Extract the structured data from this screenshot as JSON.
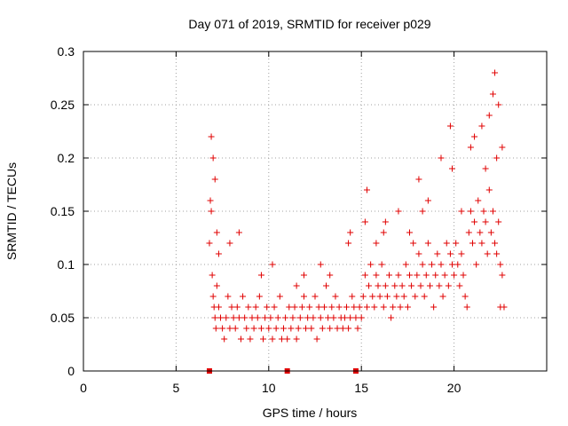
{
  "colors": {
    "series": "#e00000",
    "grid": "#a0a0a0",
    "axis": "#000000"
  },
  "chart_data": {
    "type": "scatter",
    "title": "Day 071 of 2019, SRMTID for receiver p029",
    "xlabel": "GPS time / hours",
    "ylabel": "SRMTID / TECUs",
    "xlim": [
      0,
      25
    ],
    "ylim": [
      0,
      0.3
    ],
    "xticks": [
      0,
      5,
      10,
      15,
      20
    ],
    "xtick_labels": [
      "0",
      "5",
      "10",
      "15",
      "20"
    ],
    "yticks": [
      0,
      0.05,
      0.1,
      0.15,
      0.2,
      0.25,
      0.3
    ],
    "ytick_labels": [
      "0",
      "0.05",
      "0.1",
      "0.15",
      "0.2",
      "0.25",
      "0.3"
    ],
    "grid": true,
    "marker": "+",
    "series": [
      {
        "name": "SRMTID",
        "x": [
          6.8,
          6.85,
          6.9,
          6.95,
          7.0,
          7.05,
          7.1,
          7.15,
          7.2,
          7.3,
          7.4,
          7.5,
          7.6,
          7.7,
          7.8,
          7.9,
          8.0,
          8.1,
          8.2,
          8.3,
          8.4,
          8.5,
          8.6,
          8.7,
          8.8,
          8.9,
          9.0,
          9.1,
          9.2,
          9.3,
          9.4,
          9.5,
          9.6,
          9.7,
          9.8,
          9.9,
          10.0,
          10.1,
          10.2,
          10.3,
          10.4,
          10.5,
          10.6,
          10.7,
          10.8,
          10.9,
          11.0,
          11.1,
          11.2,
          11.3,
          11.4,
          11.5,
          11.6,
          11.7,
          11.8,
          11.9,
          12.0,
          12.1,
          12.2,
          12.3,
          12.4,
          12.5,
          12.6,
          12.7,
          12.8,
          12.9,
          13.0,
          13.1,
          13.2,
          13.3,
          13.4,
          13.5,
          13.6,
          13.7,
          13.8,
          13.9,
          14.0,
          14.1,
          14.2,
          14.3,
          14.4,
          14.5,
          14.6,
          14.7,
          14.8,
          14.9,
          15.0,
          15.1,
          15.2,
          15.3,
          15.4,
          15.5,
          15.6,
          15.7,
          15.8,
          15.9,
          16.0,
          16.1,
          16.2,
          16.3,
          16.4,
          16.5,
          16.6,
          16.7,
          16.8,
          16.9,
          17.0,
          17.1,
          17.2,
          17.3,
          17.4,
          17.5,
          17.6,
          17.7,
          17.8,
          17.9,
          18.0,
          18.1,
          18.2,
          18.3,
          18.4,
          18.5,
          18.6,
          18.7,
          18.8,
          18.9,
          19.0,
          19.1,
          19.2,
          19.3,
          19.4,
          19.5,
          19.6,
          19.7,
          19.8,
          19.9,
          20.0,
          20.1,
          20.2,
          20.3,
          20.4,
          20.5,
          20.6,
          20.7,
          20.8,
          20.9,
          21.0,
          21.1,
          21.2,
          21.3,
          21.4,
          21.5,
          21.6,
          21.7,
          21.8,
          21.9,
          22.0,
          22.1,
          22.2,
          22.3,
          22.4,
          22.5,
          22.6,
          22.7,
          6.9,
          7.0,
          7.1,
          7.2,
          7.3,
          7.9,
          8.4,
          9.6,
          10.2,
          11.5,
          11.9,
          12.8,
          13.3,
          14.3,
          14.4,
          15.2,
          15.3,
          15.8,
          16.2,
          16.3,
          17.0,
          17.6,
          18.1,
          18.3,
          18.6,
          19.3,
          19.8,
          19.9,
          20.4,
          20.9,
          21.1,
          21.5,
          21.7,
          21.9,
          22.1,
          22.2,
          22.3,
          22.4,
          22.6,
          22.5
        ],
        "y": [
          0.12,
          0.16,
          0.15,
          0.09,
          0.07,
          0.06,
          0.05,
          0.04,
          0.08,
          0.06,
          0.05,
          0.04,
          0.03,
          0.05,
          0.07,
          0.04,
          0.06,
          0.05,
          0.04,
          0.06,
          0.05,
          0.03,
          0.07,
          0.05,
          0.04,
          0.06,
          0.03,
          0.05,
          0.04,
          0.06,
          0.05,
          0.07,
          0.04,
          0.03,
          0.05,
          0.06,
          0.04,
          0.05,
          0.03,
          0.06,
          0.04,
          0.05,
          0.07,
          0.03,
          0.04,
          0.05,
          0.03,
          0.06,
          0.04,
          0.05,
          0.06,
          0.03,
          0.04,
          0.05,
          0.06,
          0.07,
          0.04,
          0.05,
          0.06,
          0.04,
          0.05,
          0.07,
          0.03,
          0.06,
          0.05,
          0.04,
          0.06,
          0.08,
          0.05,
          0.04,
          0.06,
          0.05,
          0.07,
          0.04,
          0.06,
          0.05,
          0.04,
          0.05,
          0.06,
          0.04,
          0.05,
          0.07,
          0.06,
          0.05,
          0.04,
          0.06,
          0.05,
          0.07,
          0.09,
          0.06,
          0.08,
          0.1,
          0.07,
          0.06,
          0.09,
          0.08,
          0.07,
          0.1,
          0.06,
          0.08,
          0.07,
          0.09,
          0.05,
          0.06,
          0.08,
          0.07,
          0.09,
          0.06,
          0.08,
          0.07,
          0.1,
          0.06,
          0.09,
          0.08,
          0.12,
          0.07,
          0.09,
          0.11,
          0.08,
          0.1,
          0.07,
          0.09,
          0.12,
          0.08,
          0.1,
          0.06,
          0.09,
          0.11,
          0.08,
          0.1,
          0.07,
          0.09,
          0.12,
          0.08,
          0.11,
          0.1,
          0.09,
          0.12,
          0.1,
          0.08,
          0.11,
          0.09,
          0.07,
          0.06,
          0.13,
          0.15,
          0.12,
          0.14,
          0.1,
          0.16,
          0.13,
          0.12,
          0.15,
          0.14,
          0.11,
          0.17,
          0.13,
          0.15,
          0.12,
          0.11,
          0.14,
          0.1,
          0.09,
          0.06,
          0.22,
          0.2,
          0.18,
          0.13,
          0.11,
          0.12,
          0.13,
          0.09,
          0.1,
          0.08,
          0.09,
          0.1,
          0.09,
          0.12,
          0.13,
          0.14,
          0.17,
          0.12,
          0.13,
          0.14,
          0.15,
          0.13,
          0.18,
          0.15,
          0.16,
          0.2,
          0.23,
          0.19,
          0.15,
          0.21,
          0.22,
          0.23,
          0.19,
          0.24,
          0.26,
          0.28,
          0.2,
          0.25,
          0.21,
          0.06
        ]
      }
    ],
    "markers_on_xaxis": [
      6.8,
      11.0,
      14.7
    ]
  }
}
